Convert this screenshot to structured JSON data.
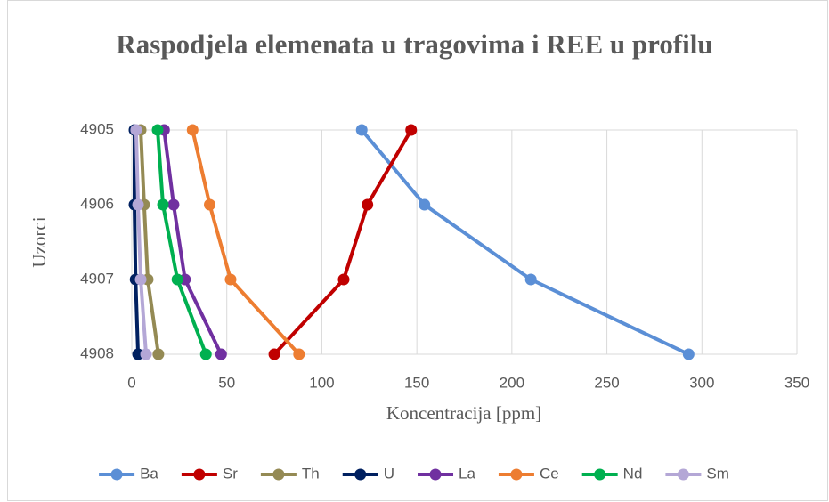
{
  "chart_data": {
    "type": "line",
    "title": "Raspodjela elemenata u tragovima i REE u profilu",
    "x_label": "Koncentracija [ppm]",
    "y_label": "Uzorci",
    "categories": [
      "4905",
      "4906",
      "4907",
      "4908"
    ],
    "xlim": [
      0,
      350
    ],
    "xticks": [
      0,
      50,
      100,
      150,
      200,
      250,
      300,
      350
    ],
    "grid": true,
    "legend": "bottom",
    "series": [
      {
        "name": "Ba",
        "color": "#5b8fd6",
        "values": [
          121,
          154,
          210,
          293
        ]
      },
      {
        "name": "Sr",
        "color": "#c00000",
        "values": [
          147,
          124,
          111.5,
          75
        ]
      },
      {
        "name": "Th",
        "color": "#948a54",
        "values": [
          4.7,
          6.5,
          8.4,
          14
        ]
      },
      {
        "name": "U",
        "color": "#002060",
        "values": [
          1.4,
          1.4,
          2,
          3.3
        ]
      },
      {
        "name": "La",
        "color": "#7030a0",
        "values": [
          17,
          22,
          28,
          47
        ]
      },
      {
        "name": "Ce",
        "color": "#ed7d31",
        "values": [
          32,
          41,
          52,
          88
        ]
      },
      {
        "name": "Nd",
        "color": "#00b050",
        "values": [
          13.6,
          16.4,
          24,
          39
        ]
      },
      {
        "name": "Sm",
        "color": "#b4a7d6",
        "values": [
          2.3,
          3.3,
          4.7,
          7.5
        ]
      }
    ]
  }
}
